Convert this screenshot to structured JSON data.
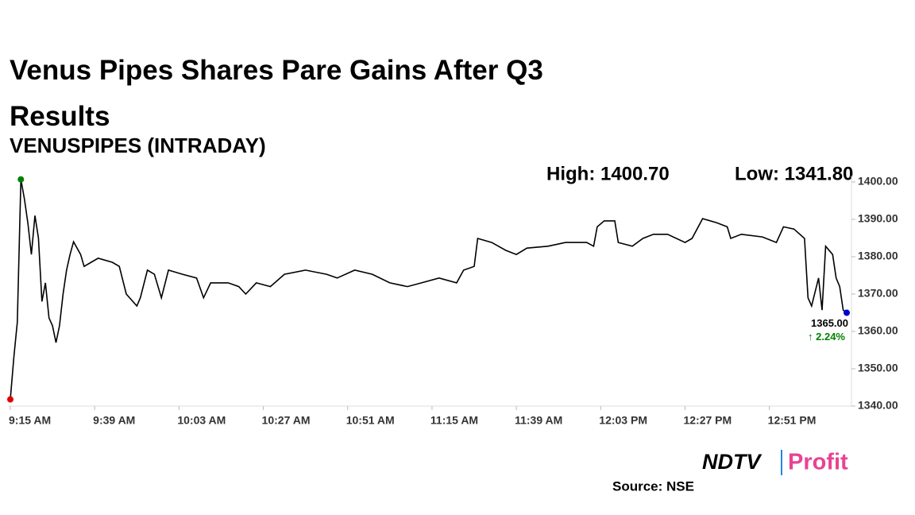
{
  "chart_data": {
    "type": "line",
    "title": "Venus Pipes Shares Pare Gains After Q3 Results",
    "subtitle": "VENUSPIPES (INTRADAY)",
    "high_label": "High: 1400.70",
    "low_label": "Low: 1341.80",
    "last_label": "1365.00",
    "change_label": "↑ 2.24%",
    "change_color": "#008000",
    "source": "Source: NSE",
    "logo": [
      "NDTV",
      "Profit"
    ],
    "color": "#000000",
    "low_color": "#e00000",
    "high_color": "#008000",
    "last_color": "#0000cc",
    "x": [
      "09:15",
      "09:16",
      "09:17",
      "09:18",
      "09:19",
      "09:20",
      "09:21",
      "09:22",
      "09:23",
      "09:24",
      "09:25",
      "09:26",
      "09:27",
      "09:28",
      "09:29",
      "09:30",
      "09:31",
      "09:32",
      "09:33",
      "09:35",
      "09:36",
      "09:38",
      "09:40",
      "09:44",
      "09:46",
      "09:48",
      "09:51",
      "09:52",
      "09:54",
      "09:56",
      "09:58",
      "10:00",
      "10:04",
      "10:08",
      "10:10",
      "10:12",
      "10:17",
      "10:20",
      "10:22",
      "10:25",
      "10:29",
      "10:33",
      "10:39",
      "10:45",
      "10:48",
      "10:53",
      "10:58",
      "11:03",
      "11:08",
      "11:12",
      "11:17",
      "11:22",
      "11:24",
      "11:27",
      "11:28",
      "11:32",
      "11:36",
      "11:39",
      "11:42",
      "11:48",
      "11:53",
      "11:59",
      "12:01",
      "12:02",
      "12:04",
      "12:07",
      "12:08",
      "12:12",
      "12:15",
      "12:18",
      "12:22",
      "12:27",
      "12:29",
      "12:32",
      "12:36",
      "12:39",
      "12:40",
      "12:43",
      "12:49",
      "12:53",
      "12:55",
      "12:58",
      "13:01",
      "13:02",
      "13:03",
      "13:05",
      "13:06",
      "13:07",
      "13:09",
      "13:10",
      "13:11",
      "13:12",
      "13:13"
    ],
    "values": [
      1341.8,
      1353,
      1362.5,
      1400.7,
      1395.5,
      1389,
      1380.6,
      1391,
      1385,
      1368,
      1373,
      1363.6,
      1361.5,
      1357,
      1361.5,
      1370,
      1376.4,
      1380.6,
      1384,
      1380.6,
      1377.4,
      1378.5,
      1379.6,
      1378.5,
      1377.4,
      1370,
      1366.8,
      1369,
      1376.4,
      1375.3,
      1369,
      1376.4,
      1375.3,
      1374.3,
      1369,
      1373,
      1373,
      1372,
      1370,
      1373,
      1372,
      1375.3,
      1376.4,
      1375.3,
      1374.3,
      1376.4,
      1375.3,
      1373,
      1372,
      1373,
      1374.3,
      1373,
      1376.4,
      1377.4,
      1384.9,
      1383.8,
      1381.7,
      1380.6,
      1382.3,
      1382.8,
      1383.8,
      1383.8,
      1382.8,
      1388,
      1389.6,
      1389.6,
      1383.8,
      1382.8,
      1384.9,
      1386,
      1386,
      1383.8,
      1384.9,
      1390.2,
      1389.1,
      1388,
      1384.9,
      1386,
      1385.3,
      1383.8,
      1388,
      1387.4,
      1384.9,
      1369,
      1366.8,
      1374.3,
      1365.7,
      1382.8,
      1380.6,
      1374.3,
      1372,
      1365.7,
      1365
    ],
    "xlim": [
      "09:15",
      "13:13"
    ],
    "xticks": [
      {
        "value": "09:15",
        "label": "9:15 AM"
      },
      {
        "value": "09:39",
        "label": "9:39 AM"
      },
      {
        "value": "10:03",
        "label": "10:03 AM"
      },
      {
        "value": "10:27",
        "label": "10:27 AM"
      },
      {
        "value": "10:51",
        "label": "10:51 AM"
      },
      {
        "value": "11:15",
        "label": "11:15 AM"
      },
      {
        "value": "11:39",
        "label": "11:39 AM"
      },
      {
        "value": "12:03",
        "label": "12:03 PM"
      },
      {
        "value": "12:27",
        "label": "12:27 PM"
      },
      {
        "value": "12:51",
        "label": "12:51 PM"
      }
    ],
    "ylim": [
      1340,
      1400
    ],
    "yticks": [
      {
        "value": 1340,
        "label": "1340.00"
      },
      {
        "value": 1350,
        "label": "1350.00"
      },
      {
        "value": 1360,
        "label": "1360.00"
      },
      {
        "value": 1370,
        "label": "1370.00"
      },
      {
        "value": 1380,
        "label": "1380.00"
      },
      {
        "value": 1390,
        "label": "1390.00"
      },
      {
        "value": 1400,
        "label": "1400.00"
      }
    ]
  }
}
